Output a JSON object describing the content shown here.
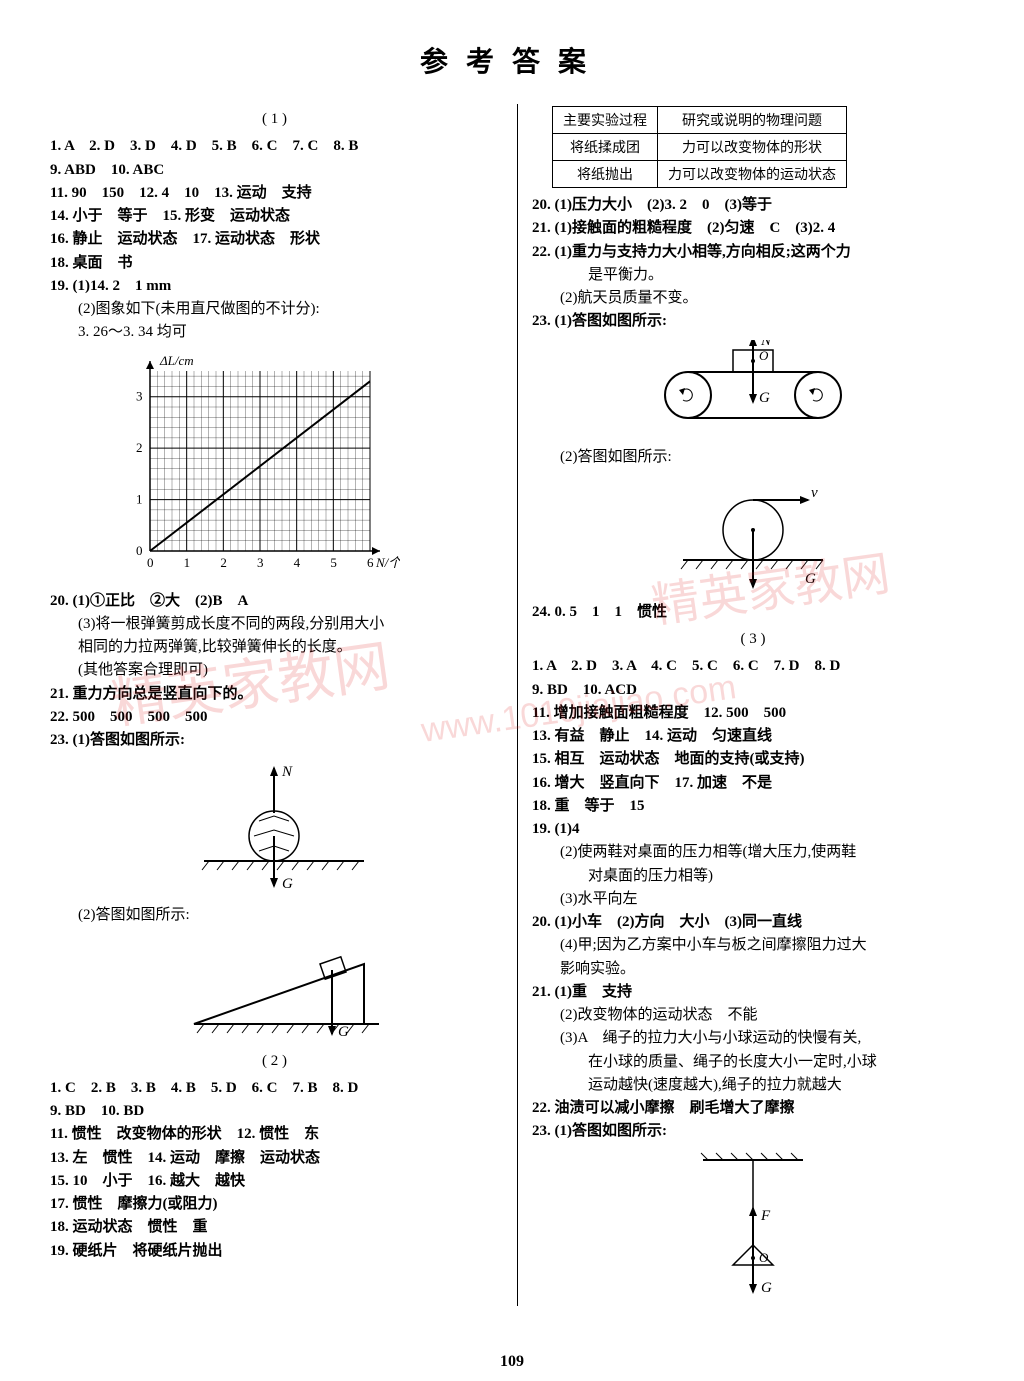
{
  "title": "参考答案",
  "page_number": "109",
  "watermark_chars": "精英家教网",
  "watermark_url": "www.1010jiajiao.com",
  "col_left": {
    "sec1": {
      "head": "( 1 )",
      "l1": "1. A　2. D　3. D　4. D　5. B　6. C　7. C　8. B",
      "l2": "9. ABD　10. ABC",
      "l3": "11. 90　150　12. 4　10　13. 运动　支持",
      "l4": "14. 小于　等于　15. 形变　运动状态",
      "l5": "16. 静止　运动状态　17. 运动状态　形状",
      "l6": "18. 桌面　书",
      "l7": "19. (1)14. 2　1 mm",
      "l8": "(2)图象如下(未用直尺做图的不计分):",
      "l9": "3. 26～3. 34 均可",
      "chart": {
        "x_label": "N/个",
        "y_label": "ΔL/cm",
        "x_ticks": [
          "0",
          "1",
          "2",
          "3",
          "4",
          "5",
          "6"
        ],
        "y_ticks": [
          "0",
          "1",
          "2",
          "3"
        ],
        "x_max": 6,
        "y_max": 3.3,
        "points": [
          [
            0,
            0
          ],
          [
            6,
            3.3
          ]
        ],
        "grid_minor": 5,
        "axis_color": "#000000",
        "grid_color": "#000000",
        "bg_color": "#ffffff"
      },
      "l10": "20. (1)①正比　②大　(2)B　A",
      "l11": "(3)将一根弹簧剪成长度不同的两段,分别用大小",
      "l12": "相同的力拉两弹簧,比较弹簧伸长的长度。",
      "l13": "(其他答案合理即可)",
      "l14": "21. 重力方向总是竖直向下的。",
      "l15": "22. 500　500　500　500",
      "l16": "23. (1)答图如图所示:",
      "fig1_labels": {
        "N": "N",
        "G": "G"
      },
      "l17": "(2)答图如图所示:",
      "fig2_labels": {
        "G": "G"
      }
    },
    "sec2": {
      "head": "( 2 )",
      "l1": "1. C　2. B　3. B　4. B　5. D　6. C　7. B　8. D",
      "l2": "9. BD　10. BD",
      "l3": "11. 惯性　改变物体的形状　12. 惯性　东",
      "l4": "13. 左　惯性　14. 运动　摩擦　运动状态",
      "l5": "15. 10　小于　16. 越大　越快",
      "l6": "17. 惯性　摩擦力(或阻力)",
      "l7": "18. 运动状态　惯性　重",
      "l8": "19. 硬纸片　将硬纸片抛出"
    }
  },
  "col_right": {
    "table": {
      "h1": "主要实验过程",
      "h2": "研究或说明的物理问题",
      "r1c1": "将纸揉成团",
      "r1c2": "力可以改变物体的形状",
      "r2c1": "将纸抛出",
      "r2c2": "力可以改变物体的运动状态"
    },
    "l1": "20. (1)压力大小　(2)3. 2　0　(3)等于",
    "l2": "21. (1)接触面的粗糙程度　(2)匀速　C　(3)2. 4",
    "l3": "22. (1)重力与支持力大小相等,方向相反;这两个力",
    "l4": "是平衡力。",
    "l5": "(2)航天员质量不变。",
    "l6": "23. (1)答图如图所示:",
    "fig1_labels": {
      "N": "N",
      "O": "O",
      "G": "G"
    },
    "l7": "(2)答图如图所示:",
    "fig2_labels": {
      "v": "v",
      "G": "G"
    },
    "l8": "24. 0. 5　1　1　惯性",
    "sec3": {
      "head": "( 3 )",
      "l1": "1. A　2. D　3. A　4. C　5. C　6. C　7. D　8. D",
      "l2": "9. BD　10. ACD",
      "l3": "11. 增加接触面粗糙程度　12. 500　500",
      "l4": "13. 有益　静止　14. 运动　匀速直线",
      "l5": "15. 相互　运动状态　地面的支持(或支持)",
      "l6": "16. 增大　竖直向下　17. 加速　不是",
      "l7": "18. 重　等于　15",
      "l8": "19. (1)4",
      "l9": "(2)使两鞋对桌面的压力相等(增大压力,使两鞋",
      "l10": "对桌面的压力相等)",
      "l11": "(3)水平向左",
      "l12": "20. (1)小车　(2)方向　大小　(3)同一直线",
      "l13": "(4)甲;因为乙方案中小车与板之间摩擦阻力过大",
      "l14": "影响实验。",
      "l15": "21. (1)重　支持",
      "l16": "(2)改变物体的运动状态　不能",
      "l17": "(3)A　绳子的拉力大小与小球运动的快慢有关,",
      "l18": "在小球的质量、绳子的长度大小一定时,小球",
      "l19": "运动越快(速度越大),绳子的拉力就越大",
      "l20": "22. 油渍可以减小摩擦　刷毛增大了摩擦",
      "l21": "23. (1)答图如图所示:",
      "fig3_labels": {
        "F": "F",
        "O": "O",
        "G": "G"
      }
    }
  }
}
